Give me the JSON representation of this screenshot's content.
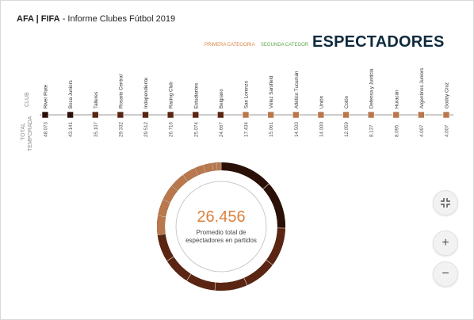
{
  "header": {
    "org": "AFA | FIFA",
    "subtitle": "- Informe Clubes Fútbol 2019"
  },
  "legend": {
    "primera": "PRIMERA CATEGORIA",
    "segunda": "SEGUNDA CATEGOR"
  },
  "section_title": "ESPECTADORES",
  "row_labels": {
    "club": "CLUB",
    "total": "TOTAL",
    "temporada": "TEMPORADA"
  },
  "center": {
    "value": "26.456",
    "caption": "Promedio  total de espectadores en partidos"
  },
  "colors": {
    "dark": "#2b1008",
    "mid": "#5a2512",
    "light": "#b9784c",
    "accent": "#d9823f",
    "ring": "#3d160a"
  },
  "controls": {
    "fullscreen_icon": "collapse-icon",
    "zoom_in_icon": "plus-icon",
    "zoom_out_icon": "minus-icon",
    "zoom_in": "+",
    "zoom_out": "−"
  },
  "chart_data": {
    "type": "bar",
    "title": "ESPECTADORES",
    "categories": [
      "River Plate",
      "Boca Juniors",
      "Talleres",
      "Rosario Central",
      "Independiente",
      "Racing Club",
      "Estudiantes",
      "Belgrano",
      "San Lorenzo",
      "Vélez Sarsfield",
      "Atlético Tucumán",
      "Unión",
      "Colón",
      "Defensa y Justicia",
      "Huracán",
      "Argentinos Juniors",
      "Godoy Cruz"
    ],
    "value_labels": [
      "48.073",
      "43.141",
      "35.107",
      "29.332",
      "29.512",
      "26.716",
      "25.074",
      "24.667",
      "17.434",
      "15.061",
      "14.503",
      "14.000",
      "12.059",
      "8.137",
      "8.095",
      "4.097",
      "4.007"
    ],
    "values": [
      48073,
      43141,
      35107,
      29332,
      29512,
      26716,
      25074,
      24667,
      17434,
      15061,
      14503,
      14000,
      12059,
      8137,
      8095,
      4097,
      4007
    ],
    "average": 26456
  }
}
